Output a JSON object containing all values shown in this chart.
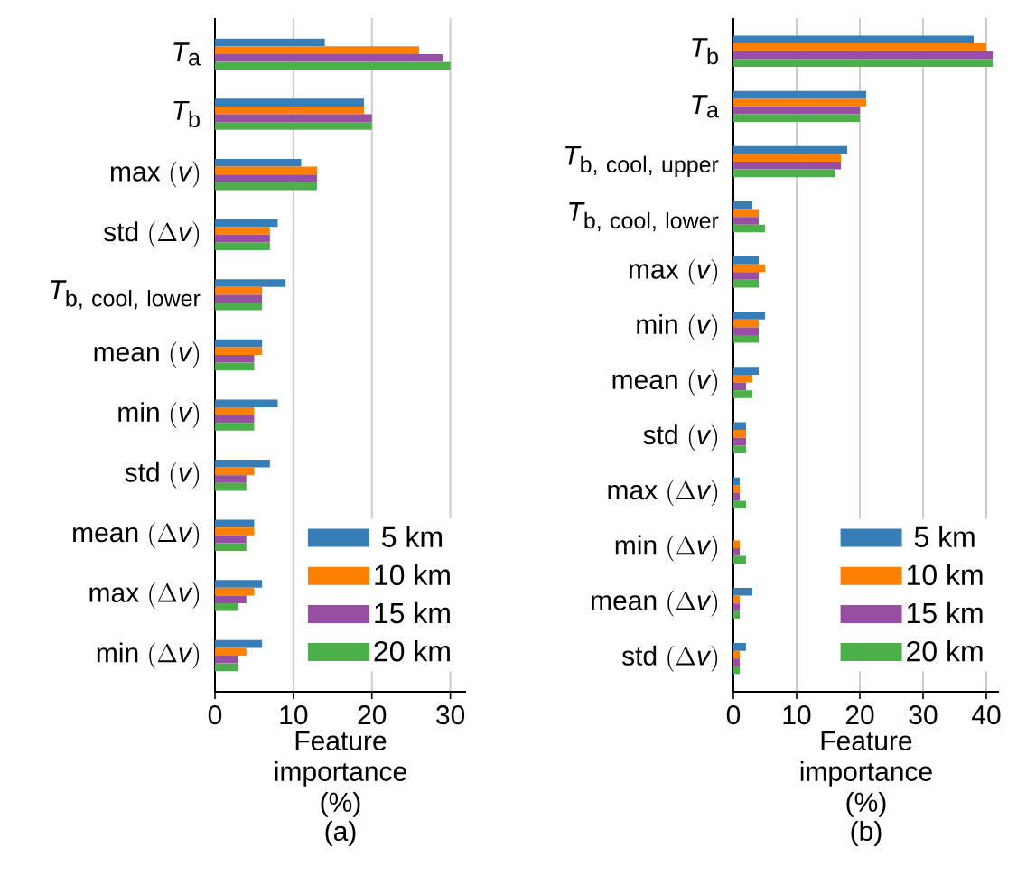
{
  "chart_data": [
    {
      "type": "bar",
      "orientation": "horizontal",
      "xlabel": "Feature importance (%)",
      "annotations": [
        "(a)"
      ],
      "grid": "x",
      "legend": "bottom right",
      "xlim": [
        0,
        32
      ],
      "xticks": [
        0,
        10,
        20,
        30
      ],
      "categories": [
        "T_\\mathrm{a}",
        "T_\\mathrm{b}",
        "\\mathrm{max}\\ (v)",
        "\\mathrm{std}\\ (\\Delta v)",
        "T_\\mathrm{b,\\ cool,\\ lower}",
        "\\mathrm{mean}\\ (v)",
        "\\mathrm{min}\\ (v)",
        "\\mathrm{std}\\ (v)",
        "\\mathrm{mean}\\ (\\Delta v)",
        "\\mathrm{max}\\ (\\Delta v)",
        "\\mathrm{min}\\ (\\Delta v)"
      ],
      "series": [
        {
          "name": "5 km",
          "color": "#377eb8",
          "values": [
            14,
            19,
            11,
            8,
            9,
            6,
            8,
            7,
            5,
            6,
            6
          ]
        },
        {
          "name": "10 km",
          "color": "#ff7f00",
          "values": [
            26,
            19,
            13,
            7,
            6,
            6,
            5,
            5,
            5,
            5,
            4
          ]
        },
        {
          "name": "15 km",
          "color": "#984ea3",
          "values": [
            29,
            20,
            13,
            7,
            6,
            5,
            5,
            4,
            4,
            4,
            3
          ]
        },
        {
          "name": "20 km",
          "color": "#4daf4a",
          "values": [
            30,
            20,
            13,
            7,
            6,
            5,
            5,
            4,
            4,
            3,
            3
          ]
        }
      ]
    },
    {
      "type": "bar",
      "orientation": "horizontal",
      "xlabel": "Feature importance (%)",
      "annotations": [
        "(b)"
      ],
      "grid": "x",
      "legend": "bottom right",
      "xlim": [
        0,
        42
      ],
      "xticks": [
        0,
        10,
        20,
        30,
        40
      ],
      "categories": [
        "T_\\mathrm{b}",
        "T_\\mathrm{a}",
        "T_\\mathrm{b,\\ cool,\\ upper}",
        "T_\\mathrm{b,\\ cool,\\ lower}",
        "\\mathrm{max}\\ (v)",
        "\\mathrm{min}\\ (v)",
        "\\mathrm{mean}\\ (v)",
        "\\mathrm{std}\\ (v)",
        "\\mathrm{max}\\ (\\Delta v)",
        "\\mathrm{min}\\ (\\Delta v)",
        "\\mathrm{mean}\\ (\\Delta v)",
        "\\mathrm{std}\\ (\\Delta v)"
      ],
      "series": [
        {
          "name": "5 km",
          "color": "#377eb8",
          "values": [
            38,
            21,
            18,
            3,
            4,
            5,
            4,
            2,
            1,
            0,
            3,
            2
          ]
        },
        {
          "name": "10 km",
          "color": "#ff7f00",
          "values": [
            40,
            21,
            17,
            4,
            5,
            4,
            3,
            2,
            1,
            1,
            1,
            1
          ]
        },
        {
          "name": "15 km",
          "color": "#984ea3",
          "values": [
            41,
            20,
            17,
            4,
            4,
            4,
            2,
            2,
            1,
            1,
            1,
            1
          ]
        },
        {
          "name": "20 km",
          "color": "#4daf4a",
          "values": [
            41,
            20,
            16,
            5,
            4,
            4,
            3,
            2,
            2,
            2,
            1,
            1
          ]
        }
      ]
    }
  ]
}
